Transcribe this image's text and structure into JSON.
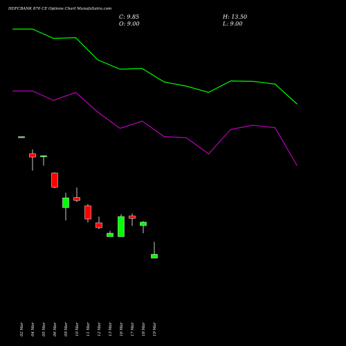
{
  "header": {
    "title": "HDFCBANK 870  CE Options  Chart MunafaSutra.com",
    "close_label": "C: 9.85",
    "open_label": "O: 9.00",
    "high_label": "H: 13.50",
    "low_label": "L: 9.00"
  },
  "chart_data": {
    "type": "candlestick",
    "title": "HDFCBANK 870  CE Options  Chart MunafaSutra.com",
    "ylim": [
      0,
      100
    ],
    "up_color": "#00ff00",
    "down_color": "#ff0000",
    "upper_band_color": "#00ff00",
    "lower_band_color": "#c000c0",
    "grid": false,
    "candles": [
      {
        "date": "02 Mar",
        "open": 60.5,
        "close": 60.5,
        "high": 60.5,
        "low": 60.5
      },
      {
        "date": "04 Mar",
        "open": 55.6,
        "close": 54.6,
        "high": 56.8,
        "low": 50.7
      },
      {
        "date": "05 Mar",
        "open": 54.7,
        "close": 55.0,
        "high": 55.1,
        "low": 52.1
      },
      {
        "date": "06 Mar",
        "open": 50.0,
        "close": 45.9,
        "high": 50.2,
        "low": 45.6
      },
      {
        "date": "09 Mar",
        "open": 40.0,
        "close": 42.8,
        "high": 44.3,
        "low": 36.3
      },
      {
        "date": "10 Mar",
        "open": 42.9,
        "close": 42.1,
        "high": 45.8,
        "low": 41.6
      },
      {
        "date": "11 Mar",
        "open": 40.5,
        "close": 36.7,
        "high": 41.0,
        "low": 35.7
      },
      {
        "date": "12 Mar",
        "open": 35.6,
        "close": 34.2,
        "high": 37.4,
        "low": 33.8
      },
      {
        "date": "13 Mar",
        "open": 31.6,
        "close": 32.6,
        "high": 33.3,
        "low": 31.6
      },
      {
        "date": "16 Mar",
        "open": 31.6,
        "close": 37.4,
        "high": 38.1,
        "low": 31.6
      },
      {
        "date": "17 Mar",
        "open": 37.6,
        "close": 36.9,
        "high": 38.3,
        "low": 34.7
      },
      {
        "date": "18 Mar",
        "open": 34.8,
        "close": 35.8,
        "high": 36.1,
        "low": 32.6
      },
      {
        "date": "19 Mar",
        "open": 25.4,
        "close": 26.5,
        "high": 30.1,
        "low": 25.4
      }
    ],
    "upper_band": [
      {
        "x": -0.8,
        "y": 91.6
      },
      {
        "x": 1.0,
        "y": 91.6
      },
      {
        "x": 2.9,
        "y": 88.9
      },
      {
        "x": 4.9,
        "y": 89.1
      },
      {
        "x": 6.9,
        "y": 82.7
      },
      {
        "x": 8.9,
        "y": 80.0
      },
      {
        "x": 10.9,
        "y": 80.2
      },
      {
        "x": 12.9,
        "y": 76.3
      },
      {
        "x": 14.9,
        "y": 75.1
      },
      {
        "x": 16.9,
        "y": 73.3
      },
      {
        "x": 18.9,
        "y": 76.6
      },
      {
        "x": 20.9,
        "y": 76.5
      },
      {
        "x": 22.9,
        "y": 75.7
      },
      {
        "x": 24.9,
        "y": 69.9
      }
    ],
    "lower_band": [
      {
        "x": -0.8,
        "y": 73.7
      },
      {
        "x": 1.0,
        "y": 73.7
      },
      {
        "x": 2.9,
        "y": 71.0
      },
      {
        "x": 4.9,
        "y": 73.3
      },
      {
        "x": 6.9,
        "y": 67.6
      },
      {
        "x": 8.9,
        "y": 62.9
      },
      {
        "x": 10.9,
        "y": 65.0
      },
      {
        "x": 12.9,
        "y": 60.5
      },
      {
        "x": 14.9,
        "y": 60.2
      },
      {
        "x": 16.9,
        "y": 55.5
      },
      {
        "x": 18.9,
        "y": 62.6
      },
      {
        "x": 20.9,
        "y": 63.8
      },
      {
        "x": 22.9,
        "y": 63.1
      },
      {
        "x": 24.9,
        "y": 52.1
      }
    ]
  }
}
